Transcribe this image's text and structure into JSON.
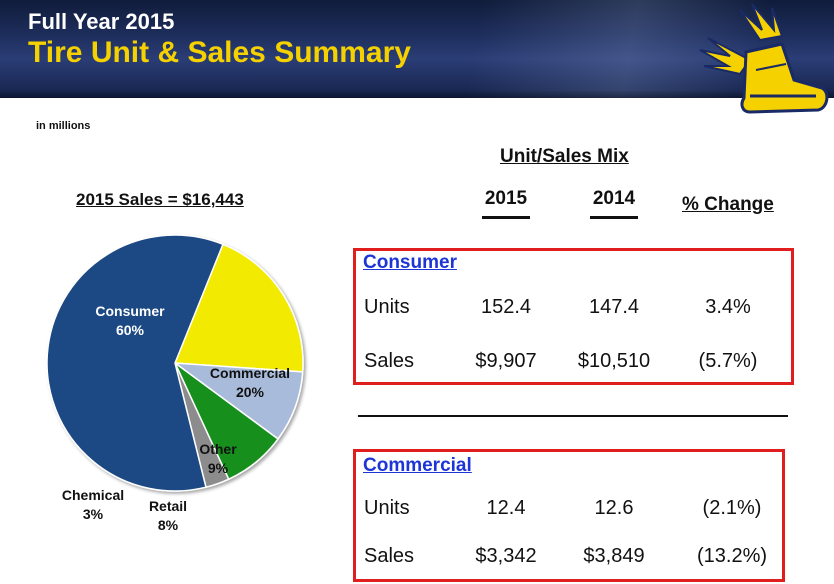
{
  "header": {
    "title_line1": "Full Year 2015",
    "title_line2": "Tire Unit & Sales Summary"
  },
  "note": "in millions",
  "pie_title": "2015 Sales = $16,443",
  "mix_title": "Unit/Sales Mix",
  "columns": {
    "y2015": "2015",
    "y2014": "2014",
    "change": "% Change"
  },
  "sections": [
    {
      "title": "Consumer",
      "rows": [
        {
          "label": "Units",
          "v2015": "152.4",
          "v2014": "147.4",
          "change": "3.4%"
        },
        {
          "label": "Sales",
          "v2015": "$9,907",
          "v2014": "$10,510",
          "change": "(5.7%)"
        }
      ]
    },
    {
      "title": "Commercial",
      "rows": [
        {
          "label": "Units",
          "v2015": "12.4",
          "v2014": "12.6",
          "change": "(2.1%)"
        },
        {
          "label": "Sales",
          "v2015": "$3,342",
          "v2014": "$3,849",
          "change": "(13.2%)"
        }
      ]
    }
  ],
  "chart_data": {
    "type": "pie",
    "title": "2015 Sales = $16,443",
    "slices": [
      {
        "name": "Consumer",
        "value": 60,
        "label": "60%",
        "color": "#1f4a84"
      },
      {
        "name": "Commercial",
        "value": 20,
        "label": "20%",
        "color": "#f2ea00"
      },
      {
        "name": "Other",
        "value": 9,
        "label": "9%",
        "color": "#a9bbdb"
      },
      {
        "name": "Retail",
        "value": 8,
        "label": "8%",
        "color": "#138f1c"
      },
      {
        "name": "Chemical",
        "value": 3,
        "label": "3%",
        "color": "#8c8c8c"
      }
    ]
  },
  "colors": {
    "accent_yellow": "#f5d100",
    "header_navy": "#1d2d5c",
    "box_red": "#e01e1e",
    "link_blue": "#1d35d6"
  },
  "icons": {
    "logo": "winged-foot-logo-icon"
  }
}
